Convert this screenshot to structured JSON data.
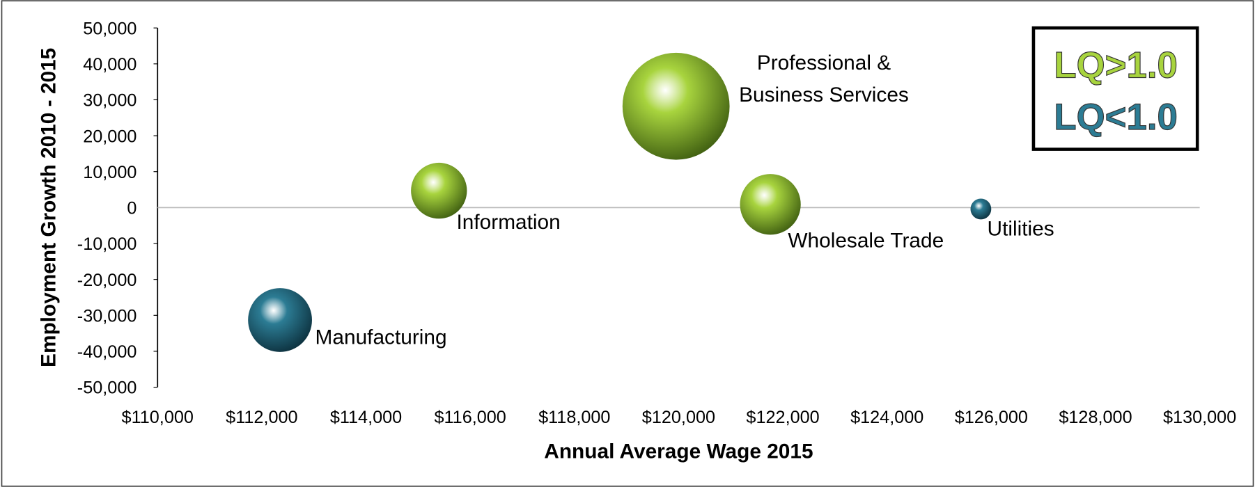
{
  "chart_data": {
    "type": "bubble",
    "x_label": "Annual Average Wage 2015",
    "y_label": "Employment Growth 2010 - 2015",
    "xlim": [
      110000,
      130000
    ],
    "xticks": [
      {
        "value": 110000,
        "label": "$110,000"
      },
      {
        "value": 112000,
        "label": "$112,000"
      },
      {
        "value": 114000,
        "label": "$114,000"
      },
      {
        "value": 116000,
        "label": "$116,000"
      },
      {
        "value": 118000,
        "label": "$118,000"
      },
      {
        "value": 120000,
        "label": "$120,000"
      },
      {
        "value": 122000,
        "label": "$122,000"
      },
      {
        "value": 124000,
        "label": "$124,000"
      },
      {
        "value": 126000,
        "label": "$126,000"
      },
      {
        "value": 128000,
        "label": "$128,000"
      },
      {
        "value": 130000,
        "label": "$130,000"
      }
    ],
    "ylim": [
      -50000,
      50000
    ],
    "yticks": [
      {
        "value": -50000,
        "label": "-50,000"
      },
      {
        "value": -40000,
        "label": "-40,000"
      },
      {
        "value": -30000,
        "label": "-30,000"
      },
      {
        "value": -20000,
        "label": "-20,000"
      },
      {
        "value": -10000,
        "label": "-10,000"
      },
      0,
      {
        "value": 10000,
        "label": "10,000"
      },
      {
        "value": 20000,
        "label": "20,000"
      },
      {
        "value": 30000,
        "label": "30,000"
      },
      {
        "value": 40000,
        "label": "40,000"
      },
      {
        "value": 50000,
        "label": "50,000"
      }
    ],
    "points": [
      {
        "label": [
          "Professional &",
          "Business Services"
        ],
        "x": 119950,
        "y": 28200,
        "size": 4489,
        "color": "#a8d43e"
      },
      {
        "label": [
          "Information"
        ],
        "x": 115400,
        "y": 4700,
        "size": 1225,
        "color": "#a8d43e"
      },
      {
        "label": [
          "Wholesale Trade"
        ],
        "x": 121760,
        "y": 900,
        "size": 1444,
        "color": "#a8d43e"
      },
      {
        "label": [
          "Utilities"
        ],
        "x": 125800,
        "y": -400,
        "size": 169,
        "color": "#2c7c94"
      },
      {
        "label": [
          "Manufacturing"
        ],
        "x": 112350,
        "y": -31300,
        "size": 1600,
        "color": "#2c7c94"
      }
    ],
    "legend": [
      {
        "label": "LQ>1.0",
        "color": "#a8d43e"
      },
      {
        "label": "LQ<1.0",
        "color": "#2c7c94"
      }
    ]
  }
}
